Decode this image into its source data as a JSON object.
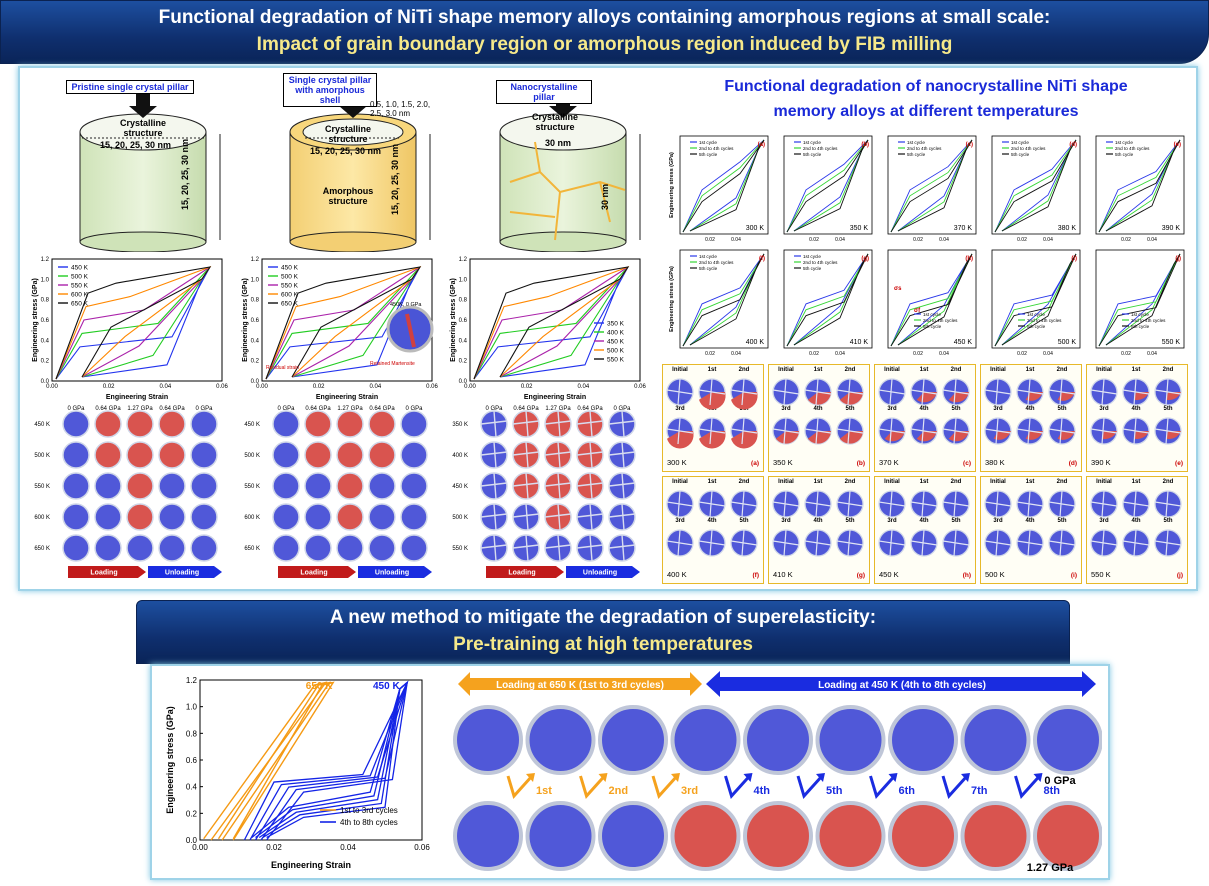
{
  "top_banner": {
    "line1": "Functional degradation of NiTi shape memory alloys containing amorphous regions at small scale:",
    "line2": "Impact of grain boundary region or amorphous region induced by FIB milling"
  },
  "pillars": [
    {
      "label": "Pristine single crystal pillar",
      "inner": "Crystalline structure",
      "diameter": "15, 20, 25, 30 nm",
      "height": "15, 20, 25, 30 nm"
    },
    {
      "label": "Single crystal pillar with amorphous shell",
      "inner": "Crystalline structure",
      "diameter": "15, 20, 25, 30 nm",
      "height": "15, 20, 25, 30 nm",
      "shell_thickness": "0.5, 1.0, 1.5, 2.0, 2.5, 3.0 nm",
      "outer": "Amorphous structure"
    },
    {
      "label": "Nanocrystalline pillar",
      "inner": "Crystalline structure",
      "diameter": "30 nm",
      "height": "30 nm"
    }
  ],
  "small_charts": {
    "xlabel": "Engineering Strain",
    "ylabel": "Engineering stress (GPa)",
    "yticks": [
      "0.0",
      "0.2",
      "0.4",
      "0.6",
      "0.8",
      "1.0",
      "1.2"
    ],
    "xticks": [
      "0.00",
      "0.02",
      "0.04",
      "0.06"
    ],
    "charts": [
      {
        "legend": [
          "450 K",
          "500 K",
          "550 K",
          "600 K",
          "650 K"
        ],
        "annotations": []
      },
      {
        "legend": [
          "450 K",
          "500 K",
          "550 K",
          "600 K",
          "650 K"
        ],
        "annotations": [
          "450K, 0 GPa",
          "Residual strain",
          "Retained Martensite"
        ]
      },
      {
        "legend": [
          "350 K",
          "400 K",
          "450 K",
          "500 K",
          "550 K"
        ],
        "annotations": []
      }
    ]
  },
  "snapshot_grids": [
    {
      "cols": [
        "0 GPa",
        "0.64 GPa",
        "1.27 GPa",
        "0.64 GPa",
        "0 GPa"
      ],
      "rows": [
        "450 K",
        "500 K",
        "550 K",
        "600 K",
        "650 K"
      ]
    },
    {
      "cols": [
        "0 GPa",
        "0.64 GPa",
        "1.27 GPa",
        "0.64 GPa",
        "0 GPa"
      ],
      "rows": [
        "450 K",
        "500 K",
        "550 K",
        "600 K",
        "650 K"
      ]
    },
    {
      "cols": [
        "0 GPa",
        "0.64 GPa",
        "1.27 GPa",
        "0.64 GPa",
        "0 GPa"
      ],
      "rows": [
        "350 K",
        "400 K",
        "450 K",
        "500 K",
        "550 K"
      ]
    }
  ],
  "arrows": {
    "loading": "Loading",
    "unloading": "Unloading"
  },
  "right_panel": {
    "title_line1": "Functional degradation of nanocrystalline NiTi shape",
    "title_line2": "memory alloys at different temperatures",
    "legend": [
      "1st cycle",
      "2nd to 4th cycles",
      "5th cycle"
    ],
    "row1": [
      {
        "tag": "(a)",
        "temp": "300 K"
      },
      {
        "tag": "(b)",
        "temp": "350 K"
      },
      {
        "tag": "(c)",
        "temp": "370 K"
      },
      {
        "tag": "(d)",
        "temp": "380 K"
      },
      {
        "tag": "(e)",
        "temp": "390 K"
      }
    ],
    "row2": [
      {
        "tag": "(f)",
        "temp": "400 K"
      },
      {
        "tag": "(g)",
        "temp": "410 K"
      },
      {
        "tag": "(h)",
        "temp": "450 K"
      },
      {
        "tag": "(i)",
        "temp": "500 K"
      },
      {
        "tag": "(j)",
        "temp": "550 K"
      }
    ],
    "ylabel": "Engineering stress (GPa)",
    "xticks": [
      "0.02",
      "0.04"
    ],
    "sigma_labels": [
      "σs",
      "σf"
    ],
    "tile_top": [
      "Initial",
      "1st",
      "2nd"
    ],
    "tile_bottom": [
      "3rd",
      "4th",
      "5th"
    ]
  },
  "bottom_banner": {
    "line1": "A new method to mitigate the degradation of superelasticity:",
    "line2": "Pre-training at high temperatures"
  },
  "bottom_chart": {
    "xlabel": "Engineering Strain",
    "ylabel": "Engineering stress (GPa)",
    "yticks": [
      "0.0",
      "0.2",
      "0.4",
      "0.6",
      "0.8",
      "1.0",
      "1.2"
    ],
    "xticks": [
      "0.00",
      "0.02",
      "0.04",
      "0.06"
    ],
    "label_650": "650 K",
    "label_450": "450 K",
    "legend": [
      "1st to 3rd cycles",
      "4th to 8th cycles"
    ],
    "colors": {
      "orange": "#f59a14",
      "blue": "#1424e6"
    }
  },
  "bottom_sequence": {
    "arrow_650": "Loading at 650 K (1st to 3rd cycles)",
    "arrow_450": "Loading at 450 K (4th to 8th cycles)",
    "cycles": [
      "1st",
      "2nd",
      "3rd",
      "4th",
      "5th",
      "6th",
      "7th",
      "8th"
    ],
    "stress_top": "0 GPa",
    "stress_bottom": "1.27 GPa"
  }
}
